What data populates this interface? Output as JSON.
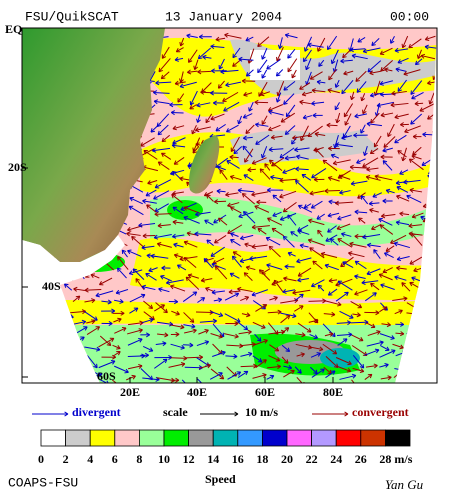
{
  "header": {
    "title": "FSU/QuikSCAT",
    "date": "13 January 2004",
    "time": "00:00"
  },
  "map": {
    "lat_labels": [
      "EQ",
      "20S",
      "40S",
      "60S"
    ],
    "lon_labels": [
      "20E",
      "40E",
      "60E",
      "80E"
    ]
  },
  "legend": {
    "divergent": "divergent",
    "scale": "scale",
    "scale_value": "10 m/s",
    "convergent": "convergent"
  },
  "colorbar": {
    "title": "Speed",
    "unit": "m/s",
    "ticks": [
      0,
      2,
      4,
      6,
      8,
      10,
      12,
      14,
      16,
      18,
      20,
      22,
      24,
      26,
      28
    ],
    "colors": [
      "#ffffff",
      "#cccccc",
      "#ffff00",
      "#ffc8c8",
      "#99ff99",
      "#00ee00",
      "#999999",
      "#00b3b3",
      "#3399ff",
      "#0000cc",
      "#ff66ff",
      "#b399ff",
      "#ff0000",
      "#cc3300",
      "#000000"
    ]
  },
  "footer": {
    "left": "COAPS-FSU",
    "right": "Yan Gu"
  }
}
